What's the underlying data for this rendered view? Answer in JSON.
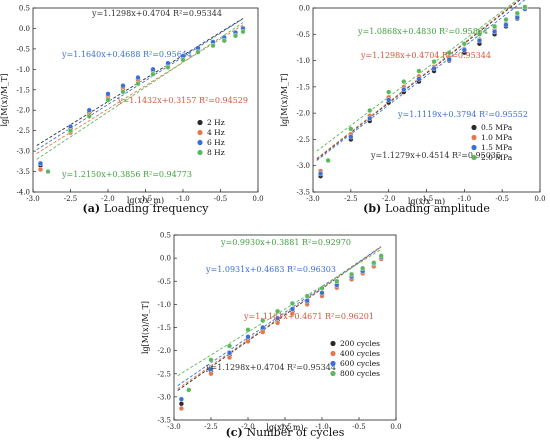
{
  "chart_data": [
    {
      "type": "scatter",
      "caption_letter": "(a)",
      "caption_text": "Loading frequency",
      "xlabel": "lg(x/x_m)",
      "ylabel": "lg[M(x)/M_T]",
      "xlim": [
        -3.0,
        0.0
      ],
      "ylim": [
        -4.0,
        0.5
      ],
      "xticks": [
        -3.0,
        -2.5,
        -2.0,
        -1.5,
        -1.0,
        -0.5,
        0.0
      ],
      "yticks": [
        -4.0,
        -3.5,
        -3.0,
        -2.5,
        -2.0,
        -1.5,
        -1.0,
        -0.5,
        0.0,
        0.5
      ],
      "legend_position": "bottom-right",
      "series": [
        {
          "name": "2 Hz",
          "color": "#2a2a2a",
          "slope": 1.1298,
          "intercept": 0.4704,
          "equation": "y=1.1298x+0.4704  R²=0.95344",
          "eq_color": "#333333",
          "x": [
            -2.9,
            -2.5,
            -2.25,
            -2.0,
            -1.8,
            -1.6,
            -1.4,
            -1.2,
            -1.0,
            -0.8,
            -0.6,
            -0.45,
            -0.3,
            -0.2
          ],
          "y": [
            -3.35,
            -2.45,
            -2.05,
            -1.65,
            -1.45,
            -1.25,
            -1.05,
            -0.88,
            -0.7,
            -0.5,
            -0.35,
            -0.25,
            -0.12,
            -0.02
          ]
        },
        {
          "name": "4 Hz",
          "color": "#e07a4c",
          "slope": 1.1432,
          "intercept": 0.3157,
          "equation": "y=1.1432x+0.3157  R²=0.94529",
          "eq_color": "#d2573a",
          "x": [
            -2.9,
            -2.5,
            -2.25,
            -2.0,
            -1.8,
            -1.6,
            -1.4,
            -1.2,
            -1.0,
            -0.8,
            -0.6,
            -0.45,
            -0.3,
            -0.2
          ],
          "y": [
            -3.45,
            -2.55,
            -2.1,
            -1.7,
            -1.5,
            -1.3,
            -1.1,
            -0.92,
            -0.75,
            -0.55,
            -0.4,
            -0.3,
            -0.15,
            -0.05
          ]
        },
        {
          "name": "6 Hz",
          "color": "#3a6fd8",
          "slope": 1.164,
          "intercept": 0.4688,
          "equation": "y=1.1640x+0.4688  R²=0.95644",
          "eq_color": "#3a6fd8",
          "x": [
            -2.9,
            -2.5,
            -2.25,
            -2.0,
            -1.8,
            -1.6,
            -1.4,
            -1.2,
            -1.0,
            -0.8,
            -0.6,
            -0.45,
            -0.3,
            -0.2
          ],
          "y": [
            -3.3,
            -2.4,
            -2.0,
            -1.6,
            -1.4,
            -1.2,
            -1.0,
            -0.85,
            -0.68,
            -0.48,
            -0.33,
            -0.22,
            -0.1,
            0.0
          ]
        },
        {
          "name": "8 Hz",
          "color": "#5cb85c",
          "slope": 1.215,
          "intercept": 0.3856,
          "equation": "y=1.2150x+0.3856  R²=0.94773",
          "eq_color": "#3f9f3f",
          "x": [
            -2.8,
            -2.5,
            -2.25,
            -2.0,
            -1.8,
            -1.6,
            -1.4,
            -1.2,
            -1.0,
            -0.8,
            -0.6,
            -0.45,
            -0.3,
            -0.2
          ],
          "y": [
            -3.5,
            -2.5,
            -2.15,
            -1.75,
            -1.55,
            -1.35,
            -1.12,
            -0.95,
            -0.77,
            -0.58,
            -0.42,
            -0.3,
            -0.18,
            -0.08
          ]
        }
      ]
    },
    {
      "type": "scatter",
      "caption_letter": "(b)",
      "caption_text": "Loading amplitude",
      "xlabel": "lg(x/x_m)",
      "ylabel": "lg[M(x)/M_T]",
      "xlim": [
        -3.0,
        0.0
      ],
      "ylim": [
        -3.5,
        0.0
      ],
      "xticks": [
        -3.0,
        -2.5,
        -2.0,
        -1.5,
        -1.0,
        -0.5,
        0.0
      ],
      "yticks": [
        -3.5,
        -3.0,
        -2.5,
        -2.0,
        -1.5,
        -1.0,
        -0.5,
        0.0
      ],
      "legend_position": "bottom-right",
      "series": [
        {
          "name": "0.5 MPa",
          "color": "#2a2a2a",
          "slope": 1.1279,
          "intercept": 0.4514,
          "equation": "y=1.1279x+0.4514  R²=0.95035",
          "eq_color": "#333333",
          "x": [
            -2.9,
            -2.5,
            -2.25,
            -2.0,
            -1.8,
            -1.6,
            -1.4,
            -1.2,
            -1.0,
            -0.8,
            -0.6,
            -0.45,
            -0.3,
            -0.2
          ],
          "y": [
            -3.2,
            -2.5,
            -2.15,
            -1.8,
            -1.6,
            -1.4,
            -1.2,
            -1.0,
            -0.85,
            -0.68,
            -0.5,
            -0.35,
            -0.2,
            -0.02
          ]
        },
        {
          "name": "1.0 MPa",
          "color": "#e07a4c",
          "slope": 1.1298,
          "intercept": 0.4704,
          "equation": "y=1.1298x+0.4704  R²=0.95344",
          "eq_color": "#d2573a",
          "x": [
            -2.9,
            -2.5,
            -2.25,
            -2.0,
            -1.8,
            -1.6,
            -1.4,
            -1.2,
            -1.0,
            -0.8,
            -0.6,
            -0.45,
            -0.3,
            -0.2
          ],
          "y": [
            -3.1,
            -2.4,
            -2.05,
            -1.7,
            -1.5,
            -1.3,
            -1.12,
            -0.95,
            -0.78,
            -0.6,
            -0.42,
            -0.3,
            -0.15,
            0.0
          ]
        },
        {
          "name": "1.5 MPa",
          "color": "#3a6fd8",
          "slope": 1.1119,
          "intercept": 0.3794,
          "equation": "y=1.1119x+0.3794  R²=0.95552",
          "eq_color": "#3a6fd8",
          "x": [
            -2.9,
            -2.5,
            -2.25,
            -2.0,
            -1.8,
            -1.6,
            -1.4,
            -1.2,
            -1.0,
            -0.8,
            -0.6,
            -0.45,
            -0.3,
            -0.2
          ],
          "y": [
            -3.15,
            -2.45,
            -2.1,
            -1.75,
            -1.55,
            -1.35,
            -1.15,
            -0.98,
            -0.8,
            -0.62,
            -0.45,
            -0.32,
            -0.18,
            -0.02
          ]
        },
        {
          "name": "2.0 MPa",
          "color": "#5cb85c",
          "slope": 1.0868,
          "intercept": 0.483,
          "equation": "y=1.0868x+0.4830  R²=0.95864",
          "eq_color": "#3f9f3f",
          "x": [
            -2.8,
            -2.5,
            -2.25,
            -2.0,
            -1.8,
            -1.6,
            -1.4,
            -1.2,
            -1.0,
            -0.8,
            -0.6,
            -0.45,
            -0.3,
            -0.2
          ],
          "y": [
            -2.9,
            -2.3,
            -1.95,
            -1.6,
            -1.4,
            -1.2,
            -1.02,
            -0.85,
            -0.68,
            -0.5,
            -0.35,
            -0.22,
            -0.1,
            0.02
          ]
        }
      ]
    },
    {
      "type": "scatter",
      "caption_letter": "(c)",
      "caption_text": "Number of cycles",
      "xlabel": "lg(x/x_m)",
      "ylabel": "lg[M(x)/M_T]",
      "xlim": [
        -3.0,
        0.0
      ],
      "ylim": [
        -3.5,
        0.5
      ],
      "xticks": [
        -3.0,
        -2.5,
        -2.0,
        -1.5,
        -1.0,
        -0.5,
        0.0
      ],
      "yticks": [
        -3.5,
        -3.0,
        -2.5,
        -2.0,
        -1.5,
        -1.0,
        -0.5,
        0.0,
        0.5
      ],
      "legend_position": "bottom-right",
      "series": [
        {
          "name": "200 cycles",
          "color": "#2a2a2a",
          "slope": 1.1298,
          "intercept": 0.4704,
          "equation": "y=1.1298x+0.4704  R²=0.95344",
          "eq_color": "#333333",
          "x": [
            -2.9,
            -2.5,
            -2.25,
            -2.0,
            -1.8,
            -1.6,
            -1.4,
            -1.2,
            -1.0,
            -0.8,
            -0.6,
            -0.45,
            -0.3,
            -0.2
          ],
          "y": [
            -3.15,
            -2.45,
            -2.1,
            -1.75,
            -1.55,
            -1.35,
            -1.15,
            -0.95,
            -0.78,
            -0.6,
            -0.42,
            -0.3,
            -0.15,
            0.0
          ]
        },
        {
          "name": "400 cycles",
          "color": "#e07a4c",
          "slope": 1.1161,
          "intercept": 0.4671,
          "equation": "y=1.1161x+0.4671  R²=0.96201",
          "eq_color": "#d2573a",
          "x": [
            -2.9,
            -2.5,
            -2.25,
            -2.0,
            -1.8,
            -1.6,
            -1.4,
            -1.2,
            -1.0,
            -0.8,
            -0.6,
            -0.45,
            -0.3,
            -0.2
          ],
          "y": [
            -3.25,
            -2.5,
            -2.15,
            -1.8,
            -1.6,
            -1.4,
            -1.2,
            -1.0,
            -0.82,
            -0.64,
            -0.46,
            -0.33,
            -0.18,
            -0.02
          ]
        },
        {
          "name": "600 cycles",
          "color": "#3a6fd8",
          "slope": 1.0931,
          "intercept": 0.4683,
          "equation": "y=1.0931x+0.4683  R²=0.96303",
          "eq_color": "#3a6fd8",
          "x": [
            -2.9,
            -2.5,
            -2.25,
            -2.0,
            -1.8,
            -1.6,
            -1.4,
            -1.2,
            -1.0,
            -0.8,
            -0.6,
            -0.45,
            -0.3,
            -0.2
          ],
          "y": [
            -3.05,
            -2.4,
            -2.05,
            -1.7,
            -1.5,
            -1.3,
            -1.1,
            -0.92,
            -0.75,
            -0.58,
            -0.4,
            -0.28,
            -0.12,
            0.02
          ]
        },
        {
          "name": "800 cycles",
          "color": "#5cb85c",
          "slope": 0.993,
          "intercept": 0.3881,
          "equation": "y=0.9930x+0.3881  R²=0.92970",
          "eq_color": "#3f9f3f",
          "x": [
            -2.8,
            -2.5,
            -2.25,
            -2.0,
            -1.8,
            -1.6,
            -1.4,
            -1.2,
            -1.0,
            -0.8,
            -0.6,
            -0.45,
            -0.3,
            -0.2
          ],
          "y": [
            -2.85,
            -2.2,
            -1.9,
            -1.55,
            -1.35,
            -1.15,
            -0.98,
            -0.82,
            -0.65,
            -0.5,
            -0.35,
            -0.22,
            -0.1,
            0.05
          ]
        }
      ]
    }
  ]
}
